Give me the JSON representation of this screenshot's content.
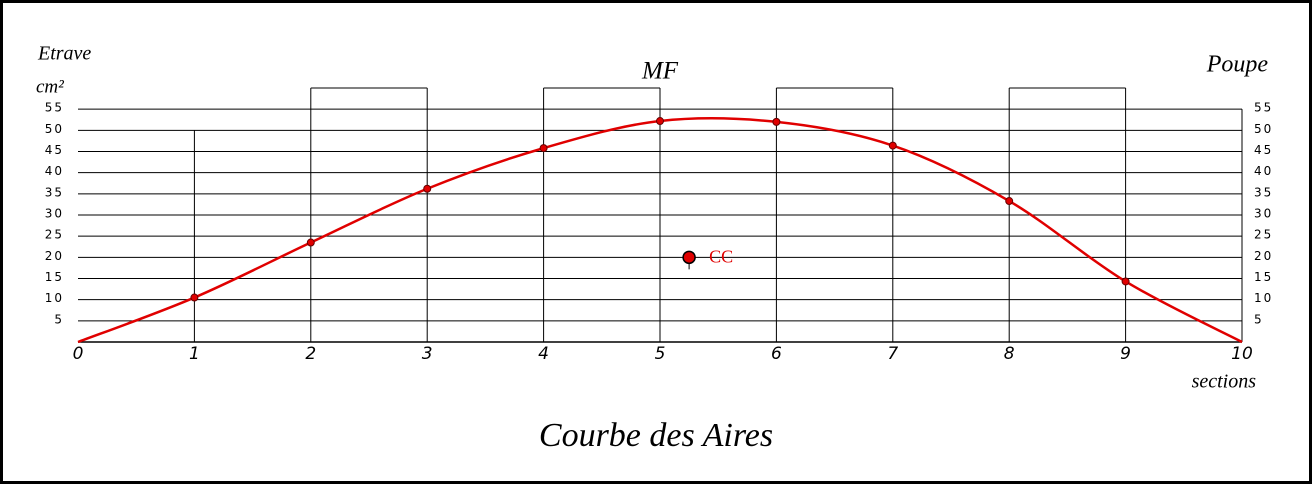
{
  "chart_data": {
    "type": "line",
    "title": "Courbe des Aires",
    "left_label": "Etrave",
    "right_label": "Poupe",
    "y_unit": "cm²",
    "midship_label": "MF",
    "x_label": "sections",
    "x": [
      0,
      1,
      2,
      3,
      4,
      5,
      6,
      7,
      8,
      9,
      10
    ],
    "series": [
      {
        "color": "#e00000",
        "values": [
          0,
          10.5,
          23.5,
          36.2,
          45.8,
          52.2,
          52.0,
          46.4,
          33.3,
          14.3,
          0
        ]
      }
    ],
    "cc": {
      "x": 5.25,
      "y": 20,
      "label": "CC"
    },
    "xlim": [
      0,
      10
    ],
    "xticks": [
      0,
      1,
      2,
      3,
      4,
      5,
      6,
      7,
      8,
      9,
      10
    ],
    "ylim": [
      0,
      60
    ],
    "yticks": [
      5,
      10,
      15,
      20,
      25,
      30,
      35,
      40,
      45,
      50,
      55
    ],
    "grid": true
  }
}
